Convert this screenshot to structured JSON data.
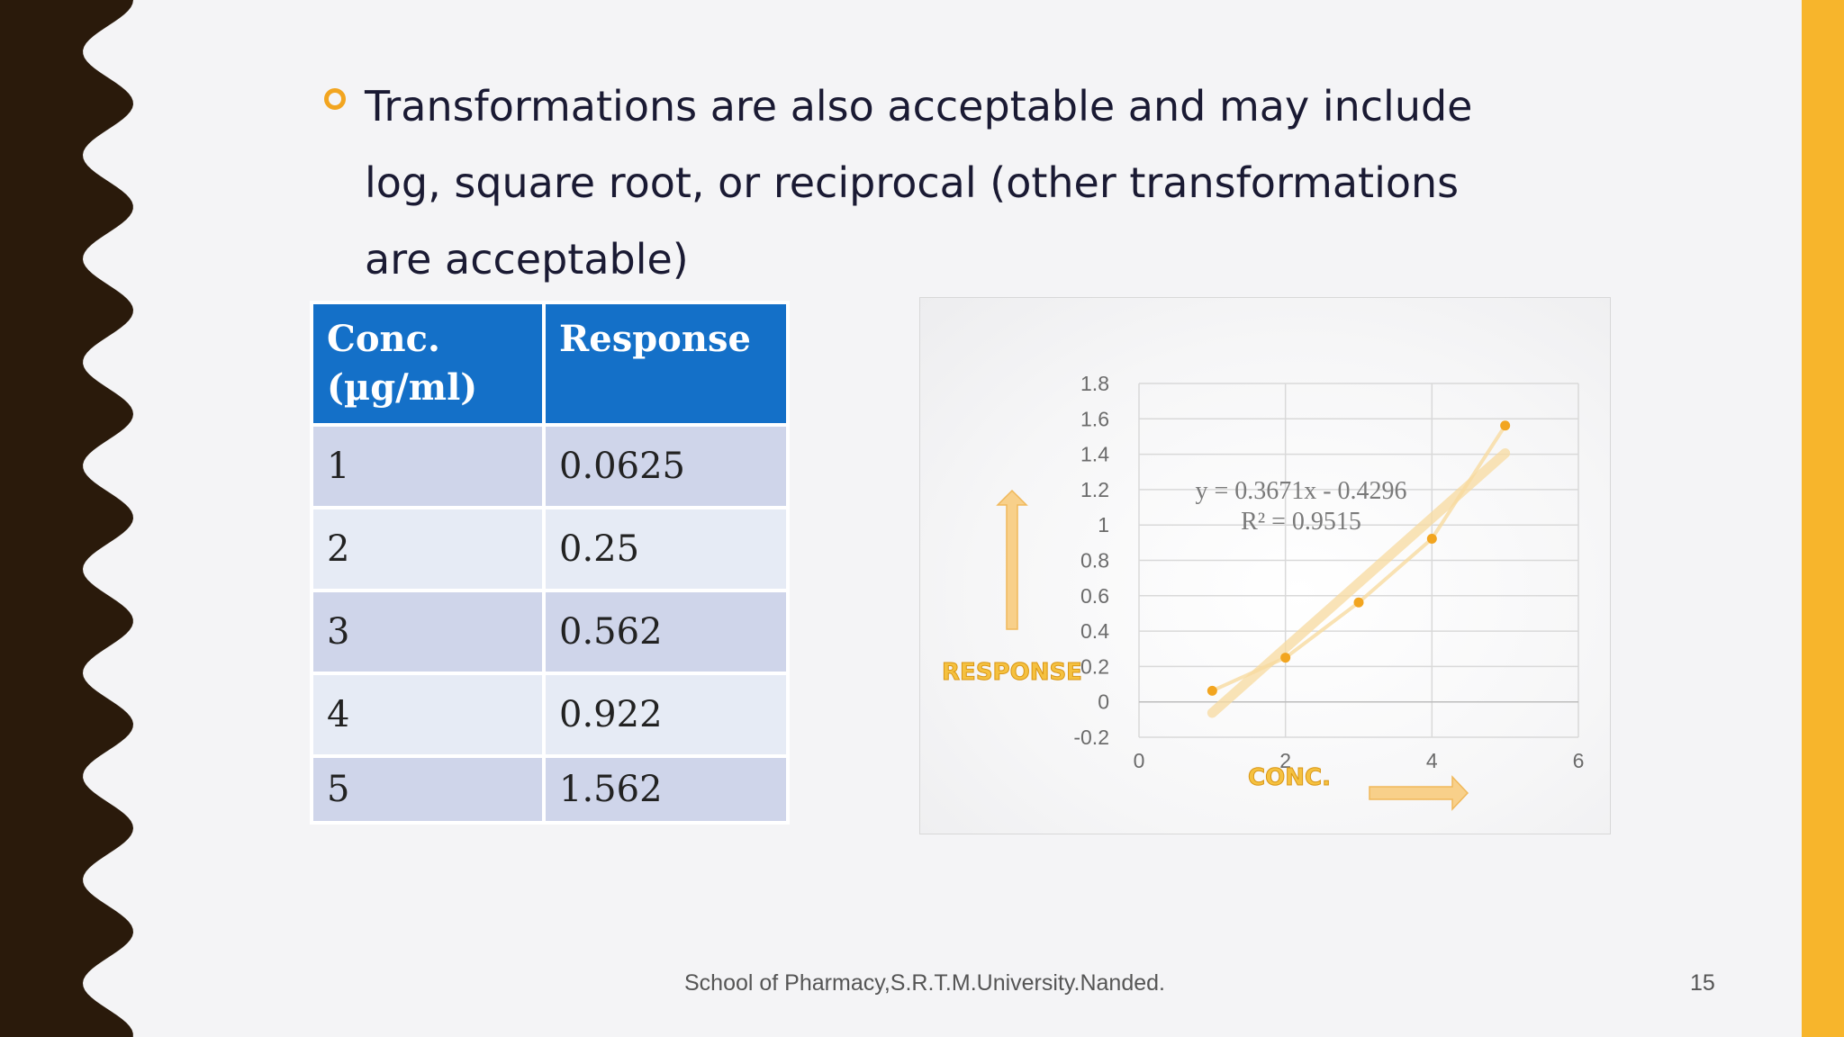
{
  "slide": {
    "bullet_text": "Transformations are also acceptable and may include log, square root, or reciprocal (other transformations are acceptable)",
    "footer": "School of Pharmacy,S.R.T.M.University.Nanded.",
    "page_number": "15"
  },
  "colors": {
    "accent": "#f7b52c",
    "left_band": "#2a1a0b",
    "table_header": "#1470c8",
    "marker": "#f2a520"
  },
  "table": {
    "headers": [
      "Conc. (µg/ml)",
      "Response"
    ],
    "rows": [
      [
        "1",
        "0.0625"
      ],
      [
        "2",
        "0.25"
      ],
      [
        "3",
        "0.562"
      ],
      [
        "4",
        "0.922"
      ],
      [
        "5",
        "1.562"
      ]
    ]
  },
  "chart_data": {
    "type": "scatter",
    "x": [
      1,
      2,
      3,
      4,
      5
    ],
    "y": [
      0.0625,
      0.25,
      0.562,
      0.922,
      1.562
    ],
    "xlim": [
      0,
      6
    ],
    "ylim": [
      -0.2,
      1.8
    ],
    "xticks": [
      "0",
      "2",
      "4",
      "6"
    ],
    "yticks": [
      "-0.2",
      "0",
      "0.2",
      "0.4",
      "0.6",
      "0.8",
      "1",
      "1.2",
      "1.4",
      "1.6",
      "1.8"
    ],
    "trendline": {
      "slope": 0.3671,
      "intercept": -0.4296
    },
    "equation": "y = 0.3671x - 0.4296",
    "r_squared": "R² = 0.9515",
    "xlabel": "CONC.",
    "ylabel": "RESPONSE",
    "grid": true,
    "marker_color": "#f2a520",
    "line_color": "#f8dba0"
  }
}
